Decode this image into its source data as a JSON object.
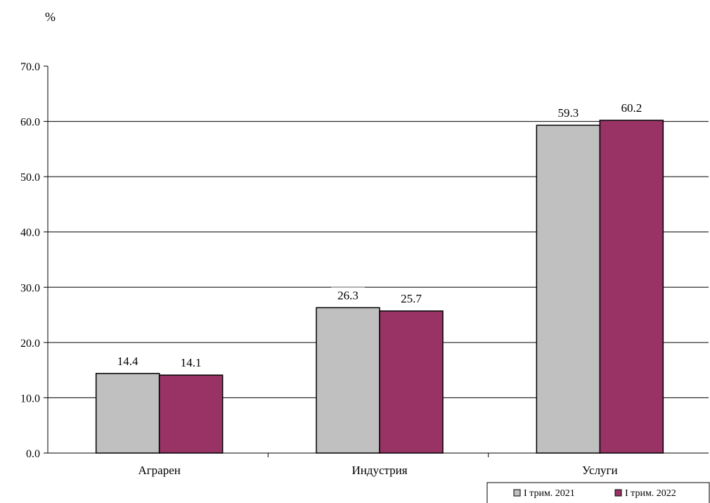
{
  "chart_data": {
    "type": "bar",
    "title": "",
    "ylabel": "%",
    "xlabel": "",
    "ylim": [
      0,
      70
    ],
    "yticks": [
      "0.0",
      "10.0",
      "20.0",
      "30.0",
      "40.0",
      "50.0",
      "60.0",
      "70.0"
    ],
    "grid": true,
    "legend_position": "bottom-right",
    "categories": [
      "Аграрен",
      "Индустрия",
      "Услуги"
    ],
    "series": [
      {
        "name": "I трим. 2021",
        "color": "#c0c0c0",
        "values": [
          14.4,
          26.3,
          59.3
        ],
        "labels": [
          "14.4",
          "26.3",
          "59.3"
        ]
      },
      {
        "name": "I трим. 2022",
        "color": "#993366",
        "values": [
          14.1,
          25.7,
          60.2
        ],
        "labels": [
          "14.1",
          "25.7",
          "60.2"
        ]
      }
    ]
  }
}
